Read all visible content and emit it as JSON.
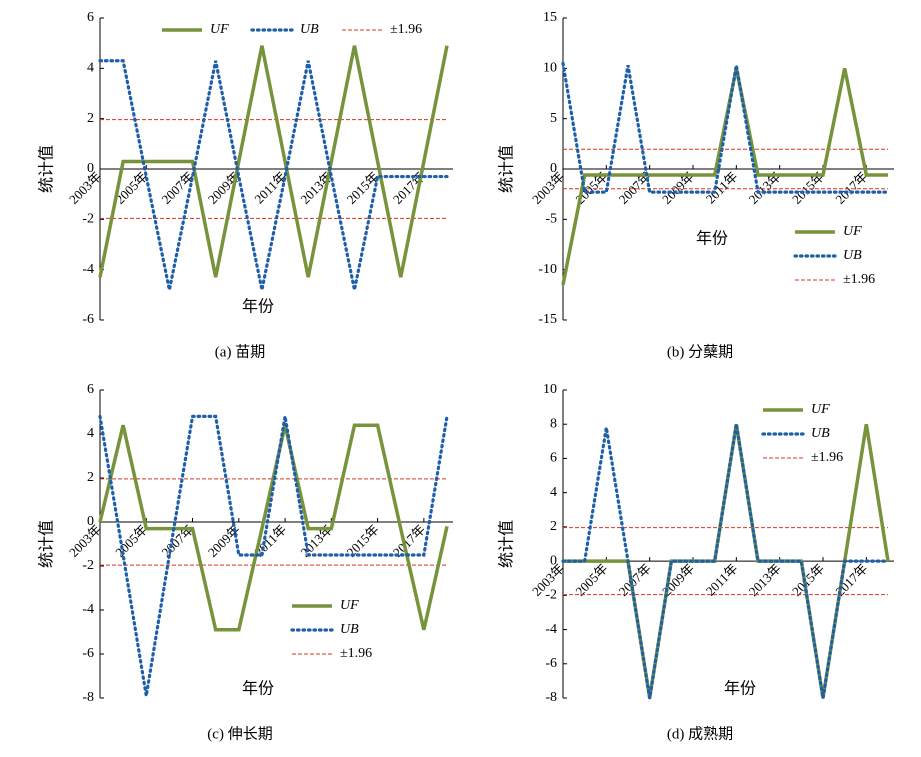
{
  "chart_data": [
    {
      "type": "line",
      "caption": "(a) 苗期",
      "xlabel": "年份",
      "ylabel": "统计值",
      "x": [
        2003,
        2004,
        2005,
        2006,
        2007,
        2008,
        2009,
        2010,
        2011,
        2012,
        2013,
        2014,
        2015,
        2016,
        2017,
        2018
      ],
      "series": [
        {
          "name": "UF",
          "color": "#77933c",
          "values": [
            -4.3,
            0.3,
            0.3,
            0.3,
            0.3,
            -4.3,
            0.3,
            4.9,
            0.3,
            -4.3,
            0.3,
            4.9,
            0.3,
            -4.3,
            0.3,
            4.9
          ]
        },
        {
          "name": "UB",
          "color": "#1f5fa8",
          "values": [
            4.3,
            4.3,
            -0.3,
            -4.8,
            -0.3,
            4.3,
            -0.3,
            -4.8,
            -0.3,
            4.3,
            -0.3,
            -4.8,
            -0.3,
            -0.3,
            -0.3,
            -0.3
          ]
        }
      ],
      "threshold": {
        "name": "±1.96",
        "value": 1.96,
        "color": "#d9341f"
      },
      "xlim": [
        2003,
        2018
      ],
      "xticks": [
        {
          "value": 2003,
          "label": "2003年"
        },
        {
          "value": 2005,
          "label": "2005年"
        },
        {
          "value": 2007,
          "label": "2007年"
        },
        {
          "value": 2009,
          "label": "2009年"
        },
        {
          "value": 2011,
          "label": "2011年"
        },
        {
          "value": 2013,
          "label": "2013年"
        },
        {
          "value": 2015,
          "label": "2015年"
        },
        {
          "value": 2017,
          "label": "2017年"
        }
      ],
      "ylim": [
        -6,
        6
      ],
      "yticks": [
        -6,
        -4,
        -2,
        0,
        2,
        4,
        6
      ],
      "legend": "upper center"
    },
    {
      "type": "line",
      "caption": "(b) 分蘖期",
      "xlabel": "年份",
      "ylabel": "统计值",
      "x": [
        2003,
        2004,
        2005,
        2006,
        2007,
        2008,
        2009,
        2010,
        2011,
        2012,
        2013,
        2014,
        2015,
        2016,
        2017,
        2018
      ],
      "series": [
        {
          "name": "UF",
          "color": "#77933c",
          "values": [
            -11.5,
            -0.6,
            -0.6,
            -0.6,
            -0.6,
            -0.6,
            -0.6,
            -0.6,
            10,
            -0.6,
            -0.6,
            -0.6,
            -0.6,
            10,
            -0.6,
            -0.6
          ]
        },
        {
          "name": "UB",
          "color": "#1f5fa8",
          "values": [
            10.5,
            -2.3,
            -2.3,
            10.3,
            -2.3,
            -2.3,
            -2.3,
            -2.3,
            10.3,
            -2.3,
            -2.3,
            -2.3,
            -2.3,
            -2.3,
            -2.3,
            -2.3
          ]
        }
      ],
      "threshold": {
        "name": "±1.96",
        "value": 1.96,
        "color": "#d9341f"
      },
      "xlim": [
        2003,
        2018
      ],
      "xticks": [
        {
          "value": 2003,
          "label": "2003年"
        },
        {
          "value": 2005,
          "label": "2005年"
        },
        {
          "value": 2007,
          "label": "2007年"
        },
        {
          "value": 2009,
          "label": "2009年"
        },
        {
          "value": 2011,
          "label": "2011年"
        },
        {
          "value": 2013,
          "label": "2013年"
        },
        {
          "value": 2015,
          "label": "2015年"
        },
        {
          "value": 2017,
          "label": "2017年"
        }
      ],
      "ylim": [
        -15,
        15
      ],
      "yticks": [
        -15,
        -10,
        -5,
        0,
        5,
        10,
        15
      ],
      "legend": "lower right"
    },
    {
      "type": "line",
      "caption": "(c) 伸长期",
      "xlabel": "年份",
      "ylabel": "统计值",
      "x": [
        2003,
        2004,
        2005,
        2006,
        2007,
        2008,
        2009,
        2010,
        2011,
        2012,
        2013,
        2014,
        2015,
        2016,
        2017,
        2018
      ],
      "series": [
        {
          "name": "UF",
          "color": "#77933c",
          "values": [
            0,
            4.4,
            -0.3,
            -0.3,
            -0.3,
            -4.9,
            -4.9,
            -0.3,
            4.4,
            -0.3,
            -0.3,
            4.4,
            4.4,
            -0.3,
            -4.9,
            -0.2
          ]
        },
        {
          "name": "UB",
          "color": "#1f5fa8",
          "values": [
            4.8,
            -1.5,
            -7.9,
            -1.5,
            4.8,
            4.8,
            -1.5,
            -1.5,
            4.8,
            -1.5,
            -1.5,
            -1.5,
            -1.5,
            -1.5,
            -1.5,
            4.8
          ]
        }
      ],
      "threshold": {
        "name": "±1.96",
        "value": 1.96,
        "color": "#d9341f"
      },
      "xlim": [
        2003,
        2018
      ],
      "xticks": [
        {
          "value": 2003,
          "label": "2003年"
        },
        {
          "value": 2005,
          "label": "2005年"
        },
        {
          "value": 2007,
          "label": "2007年"
        },
        {
          "value": 2009,
          "label": "2009年"
        },
        {
          "value": 2011,
          "label": "2011年"
        },
        {
          "value": 2013,
          "label": "2013年"
        },
        {
          "value": 2015,
          "label": "2015年"
        },
        {
          "value": 2017,
          "label": "2017年"
        }
      ],
      "ylim": [
        -8,
        6
      ],
      "yticks": [
        -8,
        -6,
        -4,
        -2,
        0,
        2,
        4,
        6
      ],
      "legend": "lower right"
    },
    {
      "type": "line",
      "caption": "(d) 成熟期",
      "xlabel": "年份",
      "ylabel": "统计值",
      "x": [
        2003,
        2004,
        2005,
        2006,
        2007,
        2008,
        2009,
        2010,
        2011,
        2012,
        2013,
        2014,
        2015,
        2016,
        2017,
        2018
      ],
      "series": [
        {
          "name": "UF",
          "color": "#77933c",
          "values": [
            0,
            0,
            0,
            0,
            -8,
            0,
            0,
            0,
            8,
            0,
            0,
            0,
            -8,
            0,
            8,
            0
          ]
        },
        {
          "name": "UB",
          "color": "#1f5fa8",
          "values": [
            0,
            0,
            7.8,
            0,
            -8,
            0,
            0,
            0,
            8,
            0,
            0,
            0,
            -8,
            0,
            0,
            0
          ]
        }
      ],
      "threshold": {
        "name": "±1.96",
        "value": 1.96,
        "color": "#d9341f"
      },
      "xlim": [
        2003,
        2018
      ],
      "xticks": [
        {
          "value": 2003,
          "label": "2003年"
        },
        {
          "value": 2005,
          "label": "2005年"
        },
        {
          "value": 2007,
          "label": "2007年"
        },
        {
          "value": 2009,
          "label": "2009年"
        },
        {
          "value": 2011,
          "label": "2011年"
        },
        {
          "value": 2013,
          "label": "2013年"
        },
        {
          "value": 2015,
          "label": "2015年"
        },
        {
          "value": 2017,
          "label": "2017年"
        }
      ],
      "ylim": [
        -8,
        10
      ],
      "yticks": [
        -8,
        -6,
        -4,
        -2,
        0,
        2,
        4,
        6,
        8,
        10
      ],
      "legend": "upper right"
    }
  ]
}
